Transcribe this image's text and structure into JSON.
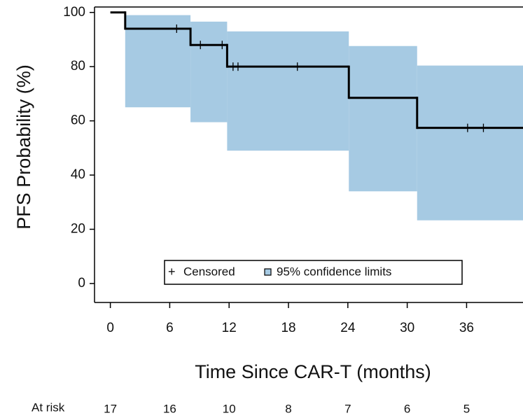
{
  "chart_data": {
    "type": "kaplan-meier",
    "xlabel": "Time Since CAR-T (months)",
    "ylabel": "PFS Probability (%)",
    "xlim": [
      -1.6,
      41.7
    ],
    "ylim": [
      -7,
      102
    ],
    "xticks": [
      0,
      6,
      12,
      18,
      24,
      30,
      36
    ],
    "yticks": [
      0,
      20,
      40,
      60,
      80,
      100
    ],
    "curve": {
      "color": "#000000",
      "x": [
        0,
        1.5,
        8.1,
        11.8,
        24.1,
        31
      ],
      "values": [
        100,
        94,
        88,
        80,
        68.5,
        57.4
      ]
    },
    "band": {
      "name": "95% confidence limits",
      "color": "#a6cae3",
      "x": [
        1.5,
        8.1,
        11.8,
        24.1,
        31
      ],
      "lower": [
        65,
        59.5,
        49,
        34,
        23.3
      ],
      "upper": [
        99,
        96.6,
        93,
        87.6,
        80.4
      ]
    },
    "censored": {
      "name": "Censored",
      "x": [
        6.7,
        9.1,
        11.3,
        12.4,
        12.9,
        18.9,
        36.1,
        37.7
      ],
      "values": [
        94,
        88,
        88,
        80,
        80,
        80,
        57.4,
        57.4
      ]
    },
    "at_risk": {
      "label": "At risk",
      "x": [
        0,
        6,
        12,
        18,
        24,
        30,
        36
      ],
      "values": [
        17,
        16,
        10,
        8,
        7,
        6,
        5
      ]
    }
  }
}
